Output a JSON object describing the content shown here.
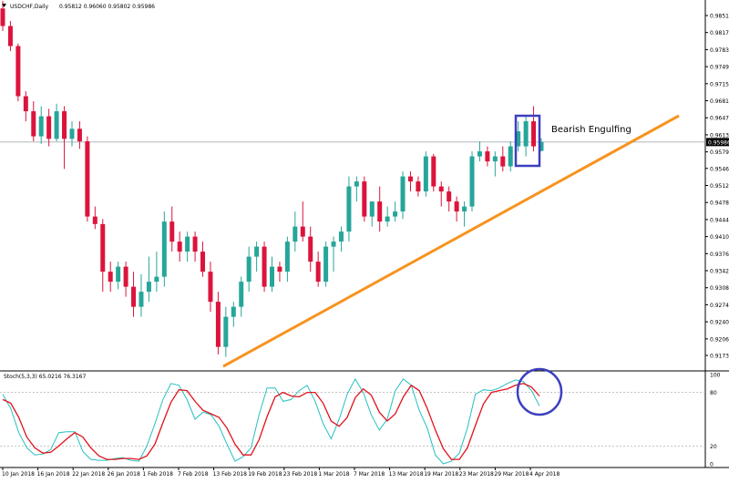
{
  "header": {
    "symbol_line": "USDCHF,Daily",
    "ohlc_line": "0.95812 0.96060 0.95802 0.95986"
  },
  "annotation": {
    "label": "Bearish Engulfing"
  },
  "colors": {
    "bull": "#26a69a",
    "bear": "#dc143c",
    "trendline": "#f7931e",
    "box": "#3b3fbf",
    "stoch_k": "#26c0c0",
    "stoch_d": "#e0121b"
  },
  "chart_data": [
    {
      "type": "candlestick",
      "title": "USDCHF,Daily",
      "y_ticks": [
        0.9851,
        0.9817,
        0.9783,
        0.9749,
        0.9715,
        0.9681,
        0.9647,
        0.9613,
        0.9579,
        0.9546,
        0.9512,
        0.9478,
        0.9444,
        0.941,
        0.9376,
        0.9342,
        0.9308,
        0.9274,
        0.924,
        0.9206,
        0.9173
      ],
      "current_price": 0.95986,
      "x_tick_labels": [
        "10 Jan 2018",
        "16 Jan 2018",
        "22 Jan 2018",
        "26 Jan 2018",
        "1 Feb 2018",
        "7 Feb 2018",
        "13 Feb 2018",
        "19 Feb 2018",
        "23 Feb 2018",
        "1 Mar 2018",
        "7 Mar 2018",
        "13 Mar 2018",
        "19 Mar 2018",
        "23 Mar 2018",
        "29 Mar 2018",
        "4 Apr 2018"
      ],
      "candles": [
        [
          0.9865,
          0.988,
          0.982,
          0.983
        ],
        [
          0.983,
          0.984,
          0.978,
          0.979
        ],
        [
          0.979,
          0.9795,
          0.968,
          0.969
        ],
        [
          0.969,
          0.97,
          0.964,
          0.966
        ],
        [
          0.966,
          0.968,
          0.96,
          0.961
        ],
        [
          0.961,
          0.967,
          0.9595,
          0.965
        ],
        [
          0.965,
          0.9665,
          0.959,
          0.9605
        ],
        [
          0.9605,
          0.9675,
          0.96,
          0.966
        ],
        [
          0.966,
          0.967,
          0.9545,
          0.9605
        ],
        [
          0.9605,
          0.964,
          0.959,
          0.9625
        ],
        [
          0.9625,
          0.964,
          0.9585,
          0.96
        ],
        [
          0.96,
          0.961,
          0.944,
          0.945
        ],
        [
          0.945,
          0.947,
          0.9425,
          0.9435
        ],
        [
          0.9435,
          0.9445,
          0.93,
          0.934
        ],
        [
          0.934,
          0.936,
          0.93,
          0.932
        ],
        [
          0.932,
          0.936,
          0.9305,
          0.935
        ],
        [
          0.935,
          0.936,
          0.929,
          0.931
        ],
        [
          0.931,
          0.934,
          0.925,
          0.927
        ],
        [
          0.927,
          0.9335,
          0.925,
          0.93
        ],
        [
          0.93,
          0.937,
          0.928,
          0.932
        ],
        [
          0.932,
          0.938,
          0.93,
          0.933
        ],
        [
          0.933,
          0.946,
          0.931,
          0.944
        ],
        [
          0.944,
          0.947,
          0.938,
          0.94
        ],
        [
          0.94,
          0.942,
          0.936,
          0.938
        ],
        [
          0.938,
          0.942,
          0.936,
          0.941
        ],
        [
          0.941,
          0.942,
          0.936,
          0.938
        ],
        [
          0.938,
          0.94,
          0.933,
          0.934
        ],
        [
          0.934,
          0.936,
          0.926,
          0.928
        ],
        [
          0.928,
          0.93,
          0.9175,
          0.919
        ],
        [
          0.919,
          0.927,
          0.917,
          0.925
        ],
        [
          0.925,
          0.928,
          0.923,
          0.927
        ],
        [
          0.927,
          0.933,
          0.925,
          0.932
        ],
        [
          0.932,
          0.939,
          0.93,
          0.937
        ],
        [
          0.937,
          0.94,
          0.934,
          0.939
        ],
        [
          0.939,
          0.94,
          0.93,
          0.931
        ],
        [
          0.931,
          0.937,
          0.93,
          0.935
        ],
        [
          0.935,
          0.936,
          0.932,
          0.934
        ],
        [
          0.934,
          0.941,
          0.932,
          0.94
        ],
        [
          0.94,
          0.946,
          0.938,
          0.943
        ],
        [
          0.943,
          0.948,
          0.94,
          0.941
        ],
        [
          0.941,
          0.943,
          0.934,
          0.936
        ],
        [
          0.936,
          0.938,
          0.931,
          0.932
        ],
        [
          0.932,
          0.94,
          0.931,
          0.939
        ],
        [
          0.939,
          0.941,
          0.934,
          0.94
        ],
        [
          0.94,
          0.943,
          0.938,
          0.942
        ],
        [
          0.942,
          0.953,
          0.94,
          0.951
        ],
        [
          0.951,
          0.953,
          0.948,
          0.952
        ],
        [
          0.952,
          0.953,
          0.944,
          0.945
        ],
        [
          0.945,
          0.948,
          0.943,
          0.948
        ],
        [
          0.948,
          0.951,
          0.942,
          0.944
        ],
        [
          0.944,
          0.947,
          0.943,
          0.945
        ],
        [
          0.945,
          0.948,
          0.944,
          0.946
        ],
        [
          0.946,
          0.954,
          0.9445,
          0.953
        ],
        [
          0.953,
          0.954,
          0.95,
          0.952
        ],
        [
          0.952,
          0.953,
          0.949,
          0.95
        ],
        [
          0.95,
          0.958,
          0.949,
          0.957
        ],
        [
          0.957,
          0.9575,
          0.95,
          0.951
        ],
        [
          0.951,
          0.952,
          0.947,
          0.95
        ],
        [
          0.95,
          0.951,
          0.946,
          0.948
        ],
        [
          0.948,
          0.949,
          0.944,
          0.946
        ],
        [
          0.946,
          0.948,
          0.943,
          0.947
        ],
        [
          0.947,
          0.958,
          0.946,
          0.957
        ],
        [
          0.957,
          0.96,
          0.956,
          0.958
        ],
        [
          0.958,
          0.959,
          0.955,
          0.956
        ],
        [
          0.956,
          0.958,
          0.953,
          0.957
        ],
        [
          0.957,
          0.959,
          0.954,
          0.955
        ],
        [
          0.955,
          0.96,
          0.954,
          0.959
        ],
        [
          0.959,
          0.964,
          0.958,
          0.962
        ],
        [
          0.959,
          0.965,
          0.957,
          0.964
        ],
        [
          0.964,
          0.967,
          0.958,
          0.959
        ],
        [
          0.9581,
          0.9606,
          0.958,
          0.9599
        ]
      ],
      "annotations": [
        "Bearish Engulfing"
      ]
    },
    {
      "type": "line",
      "title": "Stoch(5,3,3) 65.0216 76.3167",
      "y_ticks": [
        100,
        80,
        20,
        0
      ],
      "series": [
        {
          "values": [
            78,
            62,
            35,
            18,
            10,
            11,
            16,
            35,
            36,
            36,
            14,
            5,
            4,
            4,
            6,
            7,
            4,
            3,
            20,
            45,
            72,
            90,
            88,
            72,
            50,
            58,
            55,
            42,
            22,
            3,
            8,
            18,
            55,
            85,
            85,
            70,
            72,
            82,
            88,
            70,
            45,
            28,
            50,
            78,
            95,
            80,
            55,
            38,
            50,
            82,
            95,
            88,
            60,
            40,
            10,
            0,
            3,
            12,
            40,
            78,
            83,
            82,
            85,
            90,
            94,
            92,
            82,
            65
          ]
        },
        {
          "values": [
            72,
            68,
            52,
            30,
            18,
            12,
            13,
            20,
            28,
            35,
            30,
            18,
            9,
            5,
            5,
            6,
            6,
            5,
            9,
            22,
            46,
            69,
            83,
            82,
            70,
            60,
            56,
            52,
            40,
            22,
            10,
            10,
            27,
            53,
            75,
            80,
            76,
            75,
            80,
            80,
            68,
            48,
            42,
            52,
            74,
            84,
            77,
            58,
            48,
            56,
            75,
            88,
            82,
            62,
            38,
            17,
            5,
            5,
            18,
            43,
            67,
            80,
            82,
            84,
            88,
            90,
            86,
            76
          ]
        }
      ]
    }
  ]
}
